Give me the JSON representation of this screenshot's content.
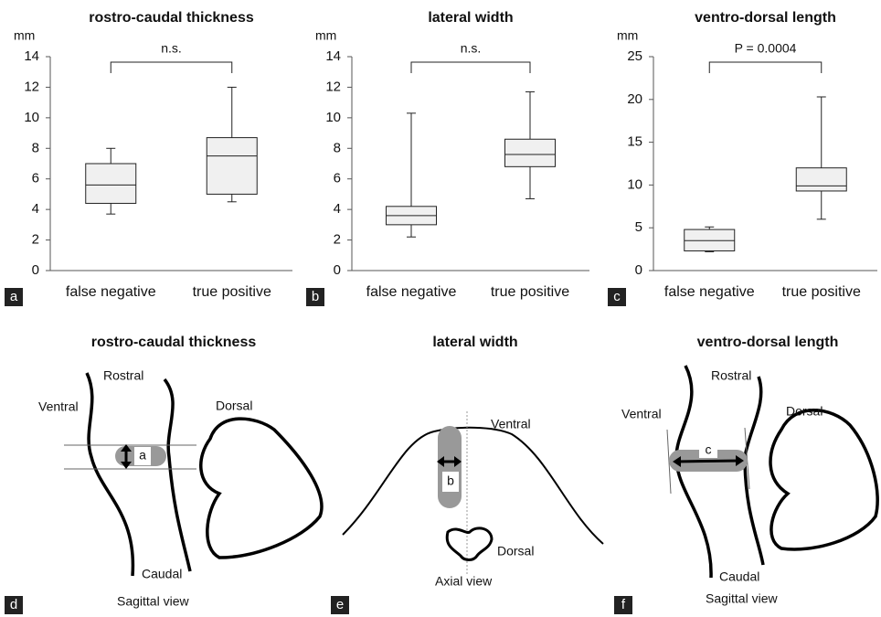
{
  "chart_data": [
    {
      "type": "box",
      "title": "rostro-caudal thickness",
      "y_label": "mm",
      "panel": "a",
      "annotation": "n.s.",
      "categories": [
        "false negative",
        "true positive"
      ],
      "boxes": [
        {
          "whisker_low": 3.7,
          "q1": 4.4,
          "median": 5.6,
          "q3": 7.0,
          "whisker_high": 8.0
        },
        {
          "whisker_low": 4.5,
          "q1": 5.0,
          "median": 7.5,
          "q3": 8.7,
          "whisker_high": 12.0
        }
      ],
      "color": "#f0f0f0",
      "ylim": [
        0,
        14
      ],
      "yticks": [
        0,
        2,
        4,
        6,
        8,
        10,
        12,
        14
      ]
    },
    {
      "type": "box",
      "title": "lateral width",
      "y_label": "mm",
      "panel": "b",
      "annotation": "n.s.",
      "categories": [
        "false negative",
        "true positive"
      ],
      "boxes": [
        {
          "whisker_low": 2.2,
          "q1": 3.0,
          "median": 3.6,
          "q3": 4.2,
          "whisker_high": 10.3
        },
        {
          "whisker_low": 4.7,
          "q1": 6.8,
          "median": 7.6,
          "q3": 8.6,
          "whisker_high": 11.7
        }
      ],
      "color": "#f0f0f0",
      "ylim": [
        0,
        14
      ],
      "yticks": [
        0,
        2,
        4,
        6,
        8,
        10,
        12,
        14
      ]
    },
    {
      "type": "box",
      "title": "ventro-dorsal length",
      "y_label": "mm",
      "panel": "c",
      "annotation": "P = 0.0004",
      "categories": [
        "false negative",
        "true positive"
      ],
      "boxes": [
        {
          "whisker_low": 2.2,
          "q1": 2.3,
          "median": 3.5,
          "q3": 4.8,
          "whisker_high": 5.1
        },
        {
          "whisker_low": 6.0,
          "q1": 9.3,
          "median": 9.9,
          "q3": 12.0,
          "whisker_high": 20.3
        }
      ],
      "color": "#f0f0f0",
      "ylim": [
        0,
        25
      ],
      "yticks": [
        0,
        5,
        10,
        15,
        20,
        25
      ]
    }
  ],
  "diagrams": [
    {
      "title": "rostro-caudal thickness",
      "panel": "d",
      "labels": [
        "Rostral",
        "Ventral",
        "Dorsal",
        "a",
        "Caudal",
        "Sagittal view"
      ]
    },
    {
      "title": "lateral width",
      "panel": "e",
      "labels": [
        "Ventral",
        "b",
        "Dorsal",
        "Axial view"
      ]
    },
    {
      "title": "ventro-dorsal length",
      "panel": "f",
      "labels": [
        "Rostral",
        "Ventral",
        "Dorsal",
        "c",
        "Caudal",
        "Sagittal view"
      ]
    }
  ]
}
